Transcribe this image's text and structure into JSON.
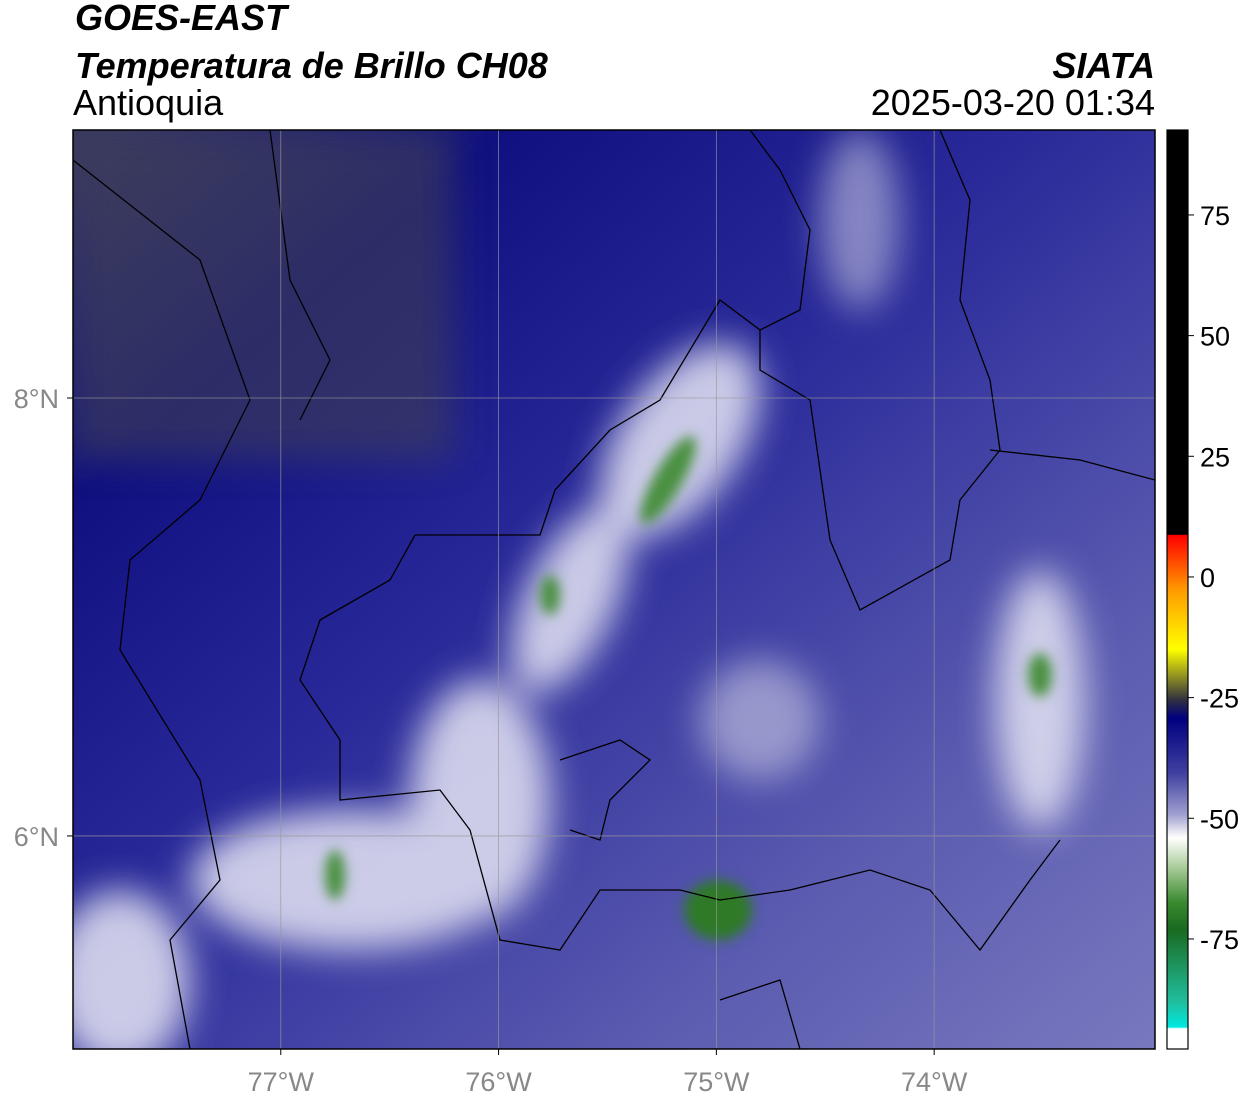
{
  "header": {
    "title": "GOES-EAST",
    "subtitle": "Temperatura de Brillo CH08",
    "region": "Antioquia",
    "source": "SIATA",
    "datetime": "2025-03-20 01:34"
  },
  "map": {
    "xlim": [
      -77.954,
      -72.986
    ],
    "ylim": [
      5.027,
      9.224
    ],
    "xticks": [
      {
        "value": -77,
        "label": "77°W"
      },
      {
        "value": -76,
        "label": "76°W"
      },
      {
        "value": -75,
        "label": "75°W"
      },
      {
        "value": -74,
        "label": "74°W"
      }
    ],
    "yticks": [
      {
        "value": 8,
        "label": "8°N"
      },
      {
        "value": 6,
        "label": "6°N"
      }
    ],
    "grid": true
  },
  "colorbar": {
    "lim": [
      -97.8,
      92.6
    ],
    "ticks": [
      75,
      50,
      25,
      0,
      -25,
      -50,
      -75
    ]
  }
}
